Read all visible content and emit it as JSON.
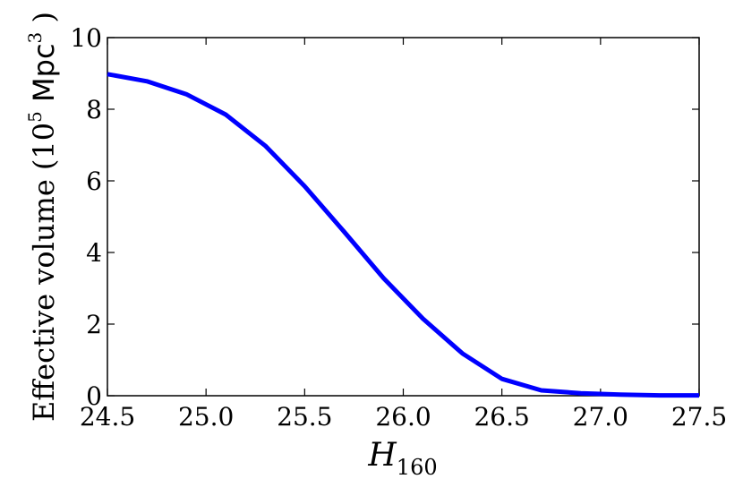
{
  "chart_data": {
    "type": "line",
    "xlabel_main": "H",
    "xlabel_sub": "160",
    "ylabel_main": "Effective volume (10",
    "ylabel_sup1": "5",
    "ylabel_mid": " Mpc",
    "ylabel_sup2": "3",
    "ylabel_end": " )",
    "xlim": [
      24.5,
      27.5
    ],
    "ylim": [
      0,
      10
    ],
    "xticks": [
      "24.5",
      "25.0",
      "25.5",
      "26.0",
      "26.5",
      "27.0",
      "27.5"
    ],
    "yticks": [
      "0",
      "2",
      "4",
      "6",
      "8",
      "10"
    ],
    "series": [
      {
        "color": "#0000ff",
        "x": [
          24.5,
          24.7,
          24.9,
          25.1,
          25.3,
          25.5,
          25.7,
          25.9,
          26.1,
          26.3,
          26.5,
          26.7,
          26.9,
          27.1,
          27.3,
          27.5
        ],
        "y": [
          8.98,
          8.78,
          8.42,
          7.85,
          6.98,
          5.85,
          4.58,
          3.28,
          2.15,
          1.18,
          0.47,
          0.15,
          0.07,
          0.03,
          0.01,
          0.01
        ]
      }
    ]
  }
}
